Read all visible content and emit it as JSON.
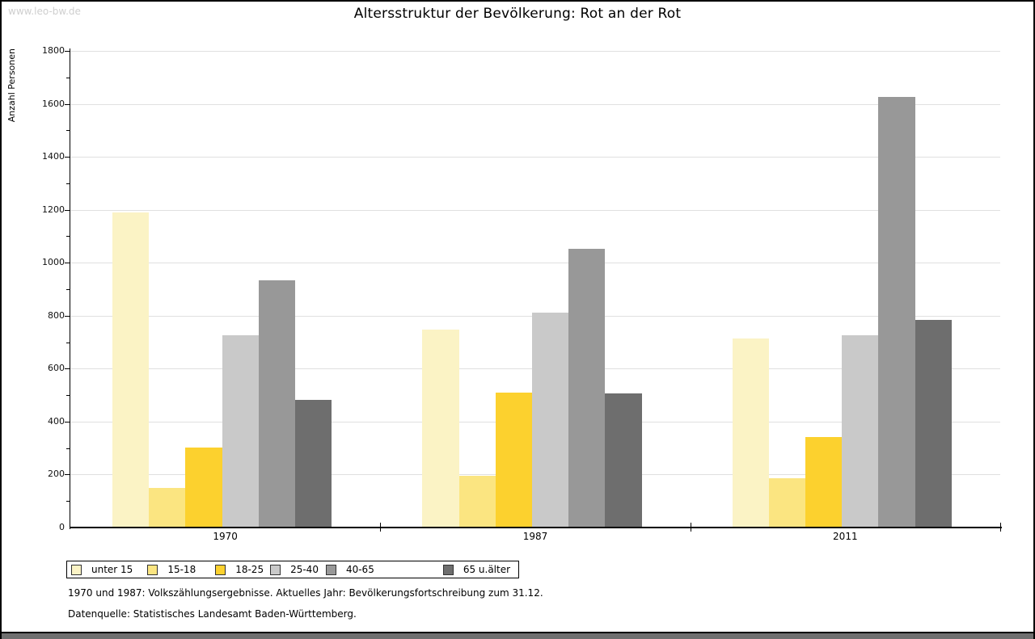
{
  "watermark": "www.leo-bw.de",
  "title": "Altersstruktur der Bevölkerung: Rot an der Rot",
  "footnotes": [
    "1970 und 1987: Volkszählungsergebnisse. Aktuelles Jahr: Bevölkerungsfortschreibung zum 31.12.",
    "Datenquelle: Statistisches Landesamt Baden-Württemberg."
  ],
  "colors": {
    "bottom_bar": "#6f6f6f",
    "watermark": "#cfcfcf",
    "gridline": "#e0e0e0",
    "axis": "#000000"
  },
  "chart_data": {
    "type": "bar",
    "title": "Altersstruktur der Bevölkerung: Rot an der Rot",
    "xlabel": "",
    "ylabel": "Anzahl Personen",
    "ylim": [
      0,
      1800
    ],
    "yticks": [
      0,
      200,
      400,
      600,
      800,
      1000,
      1200,
      1400,
      1600,
      1800
    ],
    "grid": true,
    "legend_position": "bottom-left-boxed",
    "categories": [
      "1970",
      "1987",
      "2011"
    ],
    "series": [
      {
        "name": "unter 15",
        "color": "#FBF3C5",
        "values": [
          1190,
          748,
          715
        ]
      },
      {
        "name": "15-18",
        "color": "#FBE581",
        "values": [
          150,
          195,
          186
        ]
      },
      {
        "name": "18-25",
        "color": "#FCD12E",
        "values": [
          302,
          509,
          341
        ]
      },
      {
        "name": "25-40",
        "color": "#C9C9C9",
        "values": [
          726,
          811,
          727
        ]
      },
      {
        "name": "40-65",
        "color": "#989898",
        "values": [
          933,
          1052,
          1625
        ]
      },
      {
        "name": "65 u.älter",
        "color": "#6E6E6E",
        "values": [
          482,
          507,
          783
        ]
      }
    ],
    "footnotes": [
      "1970 und 1987: Volkszählungsergebnisse. Aktuelles Jahr: Bevölkerungsfortschreibung zum 31.12.",
      "Datenquelle: Statistisches Landesamt Baden-Württemberg."
    ]
  }
}
